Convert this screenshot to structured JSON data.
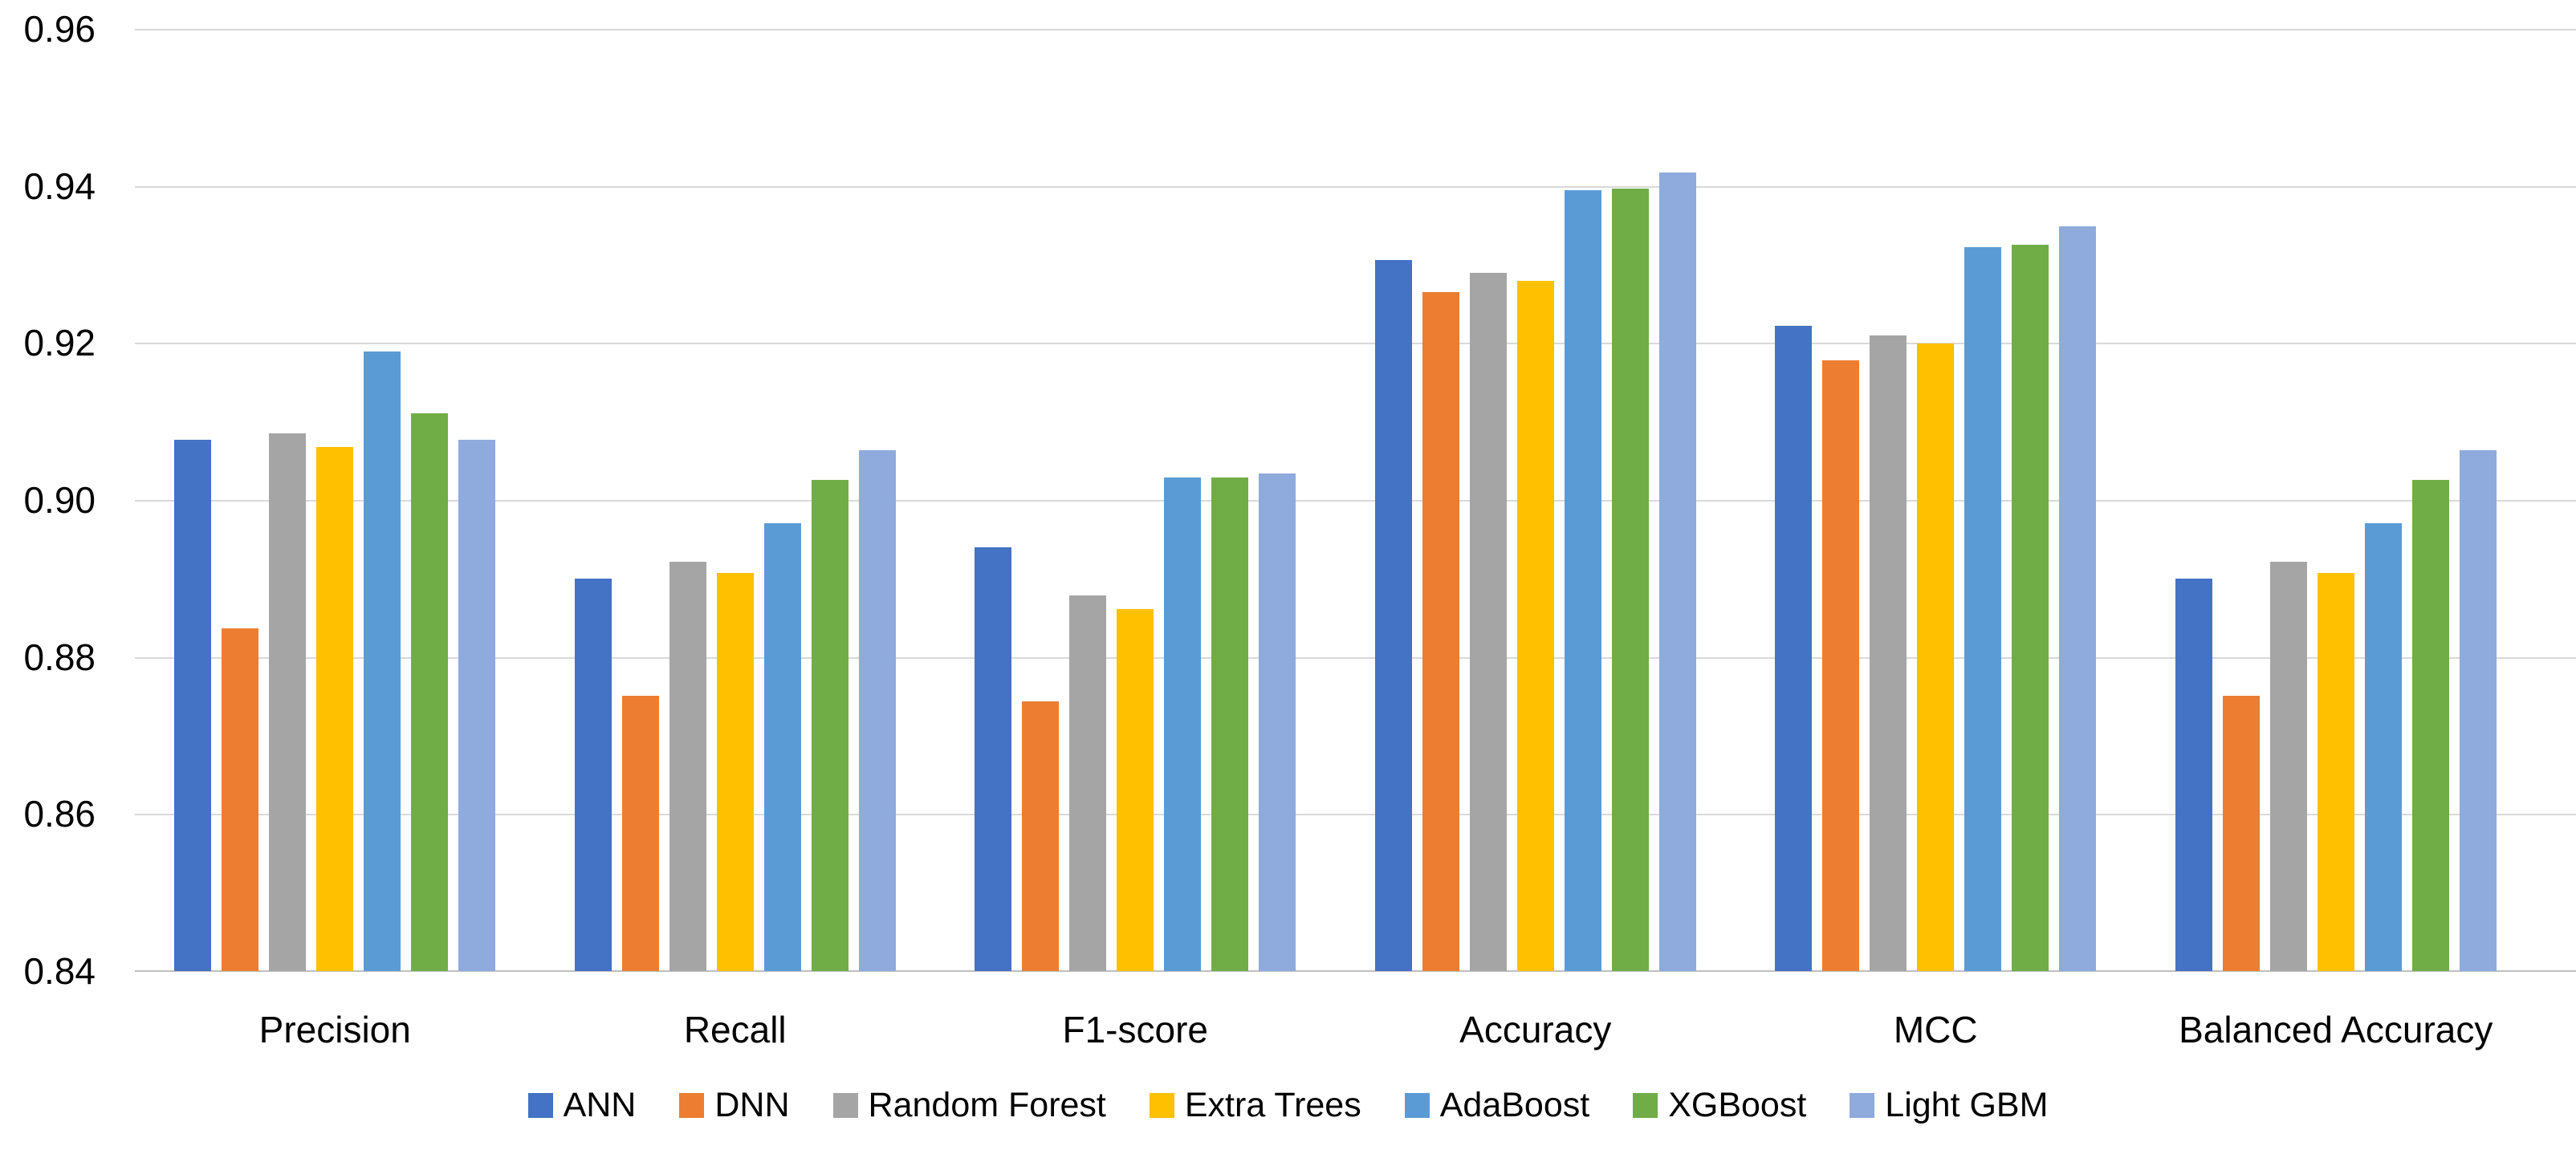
{
  "chart_data": {
    "type": "bar",
    "title": "",
    "categories": [
      "Precision",
      "Recall",
      "F1-score",
      "Accuracy",
      "MCC",
      "Balanced Accuracy"
    ],
    "series": [
      {
        "name": "ANN",
        "color": "#4472C4",
        "values": [
          0.9077,
          0.89,
          0.894,
          0.9306,
          0.9222,
          0.89
        ]
      },
      {
        "name": "DNN",
        "color": "#ED7D31",
        "values": [
          0.8837,
          0.8751,
          0.8744,
          0.9265,
          0.9178,
          0.8751
        ]
      },
      {
        "name": "Random Forest",
        "color": "#A5A5A5",
        "values": [
          0.9085,
          0.8921,
          0.8878,
          0.9289,
          0.921,
          0.8921
        ]
      },
      {
        "name": "Extra Trees",
        "color": "#FFC000",
        "values": [
          0.9068,
          0.8907,
          0.8861,
          0.9279,
          0.9199,
          0.8907
        ]
      },
      {
        "name": "AdaBoost",
        "color": "#5B9BD5",
        "values": [
          0.9189,
          0.897,
          0.9029,
          0.9395,
          0.9322,
          0.897
        ]
      },
      {
        "name": "XGBoost",
        "color": "#70AD47",
        "values": [
          0.911,
          0.9026,
          0.9029,
          0.9397,
          0.9325,
          0.9026
        ]
      },
      {
        "name": "Light GBM",
        "color": "#8FAADC",
        "values": [
          0.9077,
          0.9063,
          0.9034,
          0.9417,
          0.9349,
          0.9063
        ]
      }
    ],
    "ylim": [
      0.84,
      0.96
    ],
    "ytick_step": 0.02,
    "yticks": [
      "0.96",
      "0.94",
      "0.92",
      "0.90",
      "0.88",
      "0.86",
      "0.84"
    ],
    "grid": true,
    "legend_position": "bottom",
    "colors": {
      "background": "#ffffff",
      "gridline": "#d9d9d9",
      "axis_line": "#bfbfbf",
      "text": "#000000"
    }
  }
}
